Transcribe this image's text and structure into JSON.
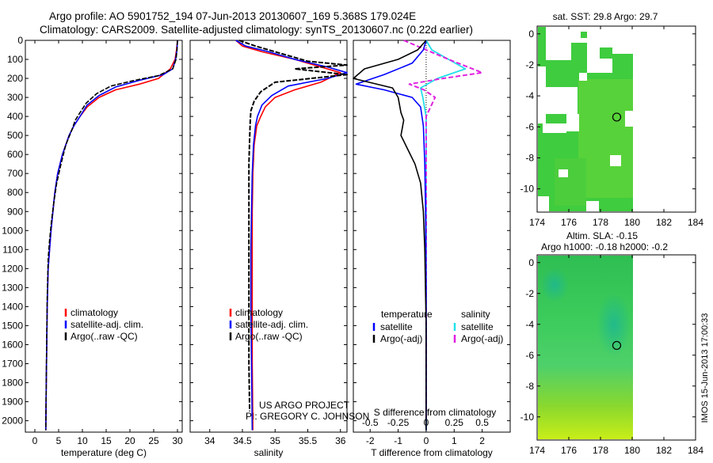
{
  "header": {
    "title_line1": "Argo profile: AO 5901752_194 07-Jun-2013 20130607_169 5.368S 179.024E",
    "title_line2": "Climatology: CARS2009. Satellite-adjusted climatology: synTS_20130607.nc (0.22d earlier)"
  },
  "colors": {
    "climatology": "#ff0000",
    "satellite": "#0000ff",
    "argo": "#000000",
    "sal_satellite": "#22e0e8",
    "sal_argo": "#e020e0",
    "sst_green": "#3fcc3f",
    "sla_green": "#44c85a"
  },
  "credit": {
    "line1": "US ARGO PROJECT",
    "line2": "PI: GREGORY C. JOHNSON"
  },
  "side_label": "IMOS 15-Jun-2013 17:00:33",
  "chart_data": [
    {
      "id": "temperature",
      "type": "line",
      "xlabel": "temperature (deg C)",
      "ylabel": "",
      "xlim": [
        -2,
        31
      ],
      "ylim": [
        2060,
        0
      ],
      "xticks": [
        0,
        5,
        10,
        15,
        20,
        25,
        30
      ],
      "yticks": [
        0,
        100,
        200,
        300,
        400,
        500,
        600,
        700,
        800,
        900,
        1000,
        1100,
        1200,
        1300,
        1400,
        1500,
        1600,
        1700,
        1800,
        1900,
        2000
      ],
      "legend": [
        "climatology",
        "satellite-adj. clim.",
        "Argo(..raw -QC)"
      ],
      "legend_position": "bottom-center",
      "series": [
        {
          "name": "climatology",
          "x": [
            30.0,
            29.8,
            29.5,
            28.5,
            26,
            22,
            17,
            13.5,
            11,
            9.5,
            8.2,
            7.2,
            5.8,
            4.8,
            4.2,
            3.8,
            3.4,
            3.1,
            2.8,
            2.6,
            2.5,
            2.4,
            2.3
          ],
          "y": [
            0,
            50,
            100,
            150,
            200,
            230,
            260,
            300,
            350,
            400,
            450,
            500,
            600,
            700,
            800,
            900,
            1000,
            1100,
            1200,
            1400,
            1600,
            1800,
            2050
          ]
        },
        {
          "name": "satellite-adj. clim.",
          "x": [
            30.0,
            29.9,
            29.6,
            29.0,
            27,
            22,
            17,
            13.5,
            11,
            9.5,
            8.2,
            7.2,
            5.8,
            4.8,
            4.2,
            3.8,
            3.4,
            3.1,
            2.8,
            2.6,
            2.5,
            2.4,
            2.3
          ],
          "y": [
            0,
            50,
            100,
            150,
            180,
            210,
            245,
            290,
            340,
            400,
            450,
            500,
            600,
            700,
            800,
            900,
            1000,
            1100,
            1200,
            1400,
            1600,
            1800,
            2050
          ]
        },
        {
          "name": "Argo(..raw -QC)",
          "x": [
            30.0,
            29.9,
            29.7,
            29.0,
            26,
            21,
            16,
            13,
            10.8,
            9.5,
            8.5,
            7.8,
            6.5,
            5.5,
            4.6,
            4.0,
            3.5,
            3.1,
            2.8,
            2.6,
            2.5,
            2.4,
            2.3
          ],
          "y": [
            0,
            50,
            100,
            150,
            185,
            210,
            240,
            280,
            330,
            380,
            420,
            470,
            550,
            650,
            750,
            850,
            950,
            1050,
            1150,
            1350,
            1550,
            1800,
            2050
          ]
        }
      ]
    },
    {
      "id": "salinity",
      "type": "line",
      "xlabel": "salinity",
      "xlim": [
        33.7,
        36.1
      ],
      "ylim": [
        2060,
        0
      ],
      "xticks": [
        34,
        34.5,
        35,
        35.5,
        36
      ],
      "legend": [
        "climatology",
        "satellite-adj. clim.",
        "Argo(..raw -QC)"
      ],
      "legend_position": "bottom-center",
      "series": [
        {
          "name": "climatology",
          "x": [
            34.4,
            34.5,
            34.8,
            35.3,
            35.7,
            36.0,
            35.7,
            35.3,
            35.0,
            34.85,
            34.78,
            34.72,
            34.68,
            34.66,
            34.65,
            34.65,
            34.65,
            34.65,
            34.66
          ],
          "y": [
            0,
            30,
            60,
            100,
            140,
            170,
            220,
            260,
            300,
            350,
            400,
            450,
            550,
            700,
            900,
            1100,
            1400,
            1700,
            2050
          ]
        },
        {
          "name": "satellite-adj. clim.",
          "x": [
            34.4,
            34.55,
            34.9,
            35.3,
            35.8,
            36.1,
            35.8,
            35.2,
            34.95,
            34.8,
            34.73,
            34.7,
            34.67,
            34.65,
            34.64,
            34.63,
            34.63,
            34.64,
            34.65
          ],
          "y": [
            0,
            30,
            60,
            100,
            140,
            170,
            200,
            240,
            290,
            340,
            400,
            450,
            550,
            700,
            900,
            1100,
            1400,
            1700,
            2050
          ]
        },
        {
          "name": "Argo(..raw -QC)",
          "x": [
            34.45,
            34.7,
            35.0,
            35.5,
            36.1,
            35.3,
            36.1,
            35.0,
            34.78,
            34.68,
            34.63,
            34.62,
            34.61,
            34.6,
            34.6,
            34.6,
            34.6,
            34.6,
            34.61
          ],
          "y": [
            0,
            30,
            60,
            110,
            130,
            150,
            180,
            220,
            270,
            320,
            370,
            420,
            520,
            650,
            850,
            1100,
            1400,
            1700,
            1950
          ]
        }
      ]
    },
    {
      "id": "difference",
      "type": "line",
      "xlabel": "T difference from climatology",
      "xlabel_top": "S difference from climatology",
      "xlim": [
        -2.6,
        3.0
      ],
      "ylim": [
        2060,
        0
      ],
      "xticks": [
        -2,
        -1,
        0,
        1,
        2
      ],
      "xticks_top": [
        -0.5,
        -0.25,
        0,
        0.25,
        0.5
      ],
      "xticks_top_labels": [
        "-0.5",
        "-0.25",
        "0",
        "0.25",
        "0.5"
      ],
      "legend_left_title": "temperature",
      "legend_right_title": "salinity",
      "legend_entries": [
        "satellite",
        "Argo(-adj)"
      ],
      "series": [
        {
          "name": "T satellite",
          "x": [
            0,
            -0.1,
            -0.5,
            -1.5,
            -2.5,
            -1.5,
            -0.5,
            -0.2,
            -0.1,
            -0.05,
            -0.02,
            0,
            0
          ],
          "y": [
            0,
            50,
            120,
            180,
            230,
            260,
            300,
            350,
            450,
            650,
            900,
            1300,
            2050
          ]
        },
        {
          "name": "T Argo(-adj)",
          "x": [
            0,
            -0.3,
            -1.0,
            -2.2,
            -2.6,
            -1.2,
            -1.0,
            -0.9,
            -0.8,
            -0.9,
            -0.7,
            -0.4,
            -0.2,
            -0.1,
            -0.05,
            0,
            0
          ],
          "y": [
            0,
            50,
            100,
            150,
            200,
            250,
            300,
            380,
            420,
            500,
            560,
            650,
            750,
            900,
            1100,
            1500,
            2050
          ]
        },
        {
          "name": "S satellite",
          "x": [
            0.0,
            0.05,
            0.2,
            0.35,
            0.1,
            -0.05,
            -0.03,
            0.0,
            0.0,
            0.0,
            0.0
          ],
          "y": [
            0,
            50,
            100,
            150,
            200,
            250,
            300,
            400,
            600,
            900,
            2050
          ]
        },
        {
          "name": "S Argo(-adj)",
          "x": [
            -0.2,
            0.0,
            0.2,
            0.5,
            0.15,
            -0.15,
            -0.02,
            0.08,
            0.0,
            0.0,
            0.0,
            0.0
          ],
          "y": [
            0,
            50,
            100,
            170,
            200,
            230,
            260,
            300,
            400,
            600,
            900,
            2000
          ]
        }
      ]
    },
    {
      "id": "sst_map",
      "type": "heatmap",
      "title": "sat. SST: 29.8 Argo: 29.7",
      "xlim": [
        174,
        184
      ],
      "ylim": [
        -11.5,
        0.5
      ],
      "xticks": [
        174,
        176,
        178,
        180,
        182,
        184
      ],
      "yticks": [
        0,
        -2,
        -4,
        -6,
        -8,
        -10
      ],
      "argo_location": [
        179.024,
        -5.368
      ]
    },
    {
      "id": "sla_map",
      "type": "heatmap",
      "title": "Altim. SLA: -0.15",
      "subtitle": "Argo h1000: -0.18 h2000: -0.2",
      "xlim": [
        174,
        184
      ],
      "ylim": [
        -11.5,
        0.5
      ],
      "xticks": [
        174,
        176,
        178,
        180,
        182,
        184
      ],
      "yticks": [
        0,
        -2,
        -4,
        -6,
        -8,
        -10
      ],
      "argo_location": [
        179.024,
        -5.368
      ]
    }
  ]
}
